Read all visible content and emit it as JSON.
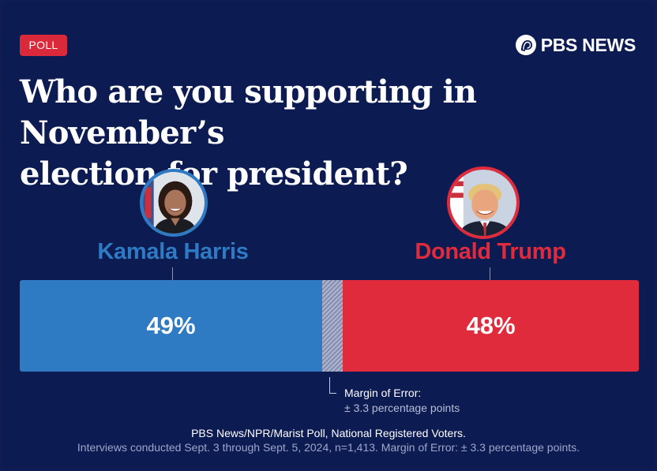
{
  "badge": "POLL",
  "brand": "PBS NEWS",
  "headline_line1": "Who are you supporting in November’s",
  "headline_line2": "election for president?",
  "colors": {
    "background": "#0c1b52",
    "harris": "#2e7bc4",
    "trump": "#e02b3c",
    "badge": "#d9293b"
  },
  "chart_data": {
    "type": "bar",
    "orientation": "horizontal-stacked",
    "title": "Who are you supporting in November’s election for president?",
    "categories": [
      "Kamala Harris",
      "Donald Trump"
    ],
    "values": [
      49,
      48
    ],
    "value_labels": [
      "49%",
      "48%"
    ],
    "margin_of_error": 3.3,
    "series_colors": [
      "#2e7bc4",
      "#e02b3c"
    ]
  },
  "moe": {
    "label": "Margin of Error:",
    "value": "± 3.3 percentage points"
  },
  "footer": {
    "source": "PBS News/NPR/Marist Poll, National Registered Voters.",
    "note": "Interviews conducted Sept. 3 through Sept. 5, 2024, n=1,413. Margin of Error: ± 3.3 percentage points."
  }
}
